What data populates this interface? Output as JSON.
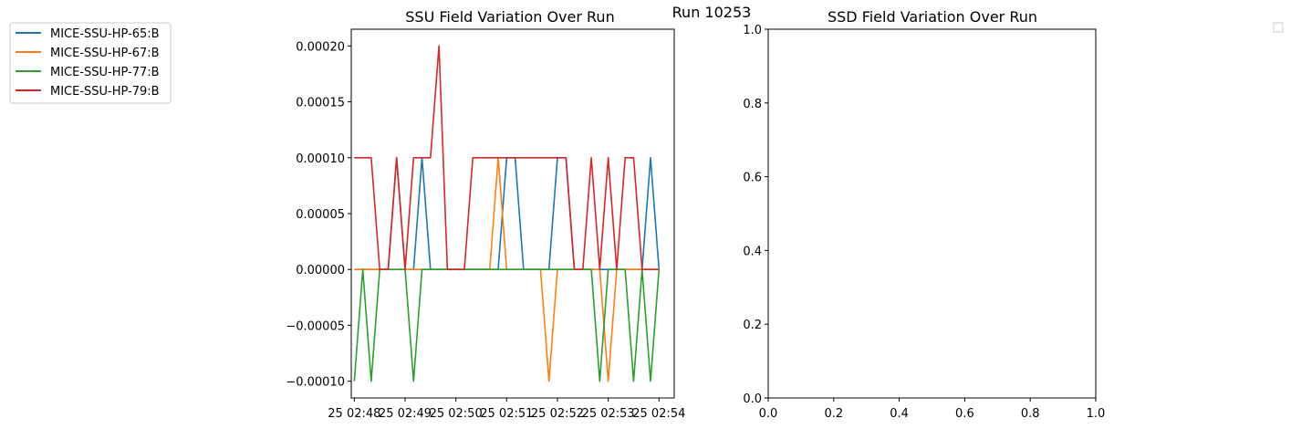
{
  "figure": {
    "suptitle": "Run 10253"
  },
  "legend": {
    "placement": "top-left",
    "entries": [
      {
        "label": "MICE-SSU-HP-65:B",
        "color": "#1f77b4"
      },
      {
        "label": "MICE-SSU-HP-67:B",
        "color": "#ff7f0e"
      },
      {
        "label": "MICE-SSU-HP-77:B",
        "color": "#2ca02c"
      },
      {
        "label": "MICE-SSU-HP-79:B",
        "color": "#d62728"
      }
    ]
  },
  "empty_legend": {
    "placement": "top-right"
  },
  "chart_data": [
    {
      "type": "line",
      "title": "SSU Field Variation Over Run",
      "xlabel": "",
      "ylabel": "",
      "grid": false,
      "x_tick_labels": [
        "25 02:48",
        "25 02:49",
        "25 02:50",
        "25 02:51",
        "25 02:52",
        "25 02:53",
        "25 02:54"
      ],
      "y_tick_labels": [
        "−0.00010",
        "−0.00005",
        "0.00000",
        "0.00005",
        "0.00010",
        "0.00015",
        "0.00020"
      ],
      "y_ticks": [
        -0.0001,
        -5e-05,
        0,
        5e-05,
        0.0001,
        0.00015,
        0.0002
      ],
      "xlim": [
        -0.06,
        6.3
      ],
      "ylim": [
        -0.000115,
        0.000215
      ],
      "x": [
        0,
        0.167,
        0.333,
        0.5,
        0.667,
        0.833,
        1.0,
        1.167,
        1.333,
        1.5,
        1.667,
        1.833,
        2.0,
        2.167,
        2.333,
        2.5,
        2.667,
        2.833,
        3.0,
        3.167,
        3.333,
        3.5,
        3.667,
        3.833,
        4.0,
        4.167,
        4.333,
        4.5,
        4.667,
        4.833,
        5.0,
        5.167,
        5.333,
        5.5,
        5.667,
        5.833,
        6.0
      ],
      "series": [
        {
          "name": "MICE-SSU-HP-65:B",
          "color": "#1f77b4",
          "values": [
            0,
            0,
            0,
            0,
            0,
            0.0001,
            0,
            0,
            0.0001,
            0,
            0,
            0,
            0,
            0,
            0,
            0,
            0,
            0,
            0.0001,
            0.0001,
            0,
            0,
            0,
            0,
            0.0001,
            0.0001,
            0,
            0,
            0,
            0,
            0,
            0,
            0,
            0,
            0,
            0.0001,
            0
          ]
        },
        {
          "name": "MICE-SSU-HP-67:B",
          "color": "#ff7f0e",
          "values": [
            0,
            0,
            0,
            0,
            0,
            0,
            0,
            0,
            0,
            0,
            0,
            0,
            0,
            0,
            0,
            0,
            0,
            0.0001,
            0,
            0,
            0,
            0,
            0,
            -0.0001,
            0,
            0,
            0,
            0,
            0,
            0,
            -0.0001,
            0,
            0,
            0,
            0,
            0,
            0
          ]
        },
        {
          "name": "MICE-SSU-HP-77:B",
          "color": "#2ca02c",
          "values": [
            -0.0001,
            0,
            -0.0001,
            0,
            0,
            0,
            0,
            -0.0001,
            0,
            0,
            0,
            0,
            0,
            0,
            0,
            0,
            0,
            0,
            0,
            0,
            0,
            0,
            0,
            0,
            0,
            0,
            0,
            0,
            0,
            -0.0001,
            0,
            0,
            0,
            -0.0001,
            0,
            -0.0001,
            0
          ]
        },
        {
          "name": "MICE-SSU-HP-79:B",
          "color": "#d62728",
          "values": [
            0.0001,
            0.0001,
            0.0001,
            0,
            0,
            0.0001,
            0,
            0.0001,
            0.0001,
            0.0001,
            0.0002,
            0,
            0,
            0,
            0.0001,
            0.0001,
            0.0001,
            0.0001,
            0.0001,
            0.0001,
            0.0001,
            0.0001,
            0.0001,
            0.0001,
            0.0001,
            0.0001,
            0,
            0,
            0.0001,
            0,
            0.0001,
            0,
            0.0001,
            0.0001,
            0,
            0,
            0
          ]
        }
      ]
    },
    {
      "type": "line",
      "title": "SSD Field Variation Over Run",
      "xlabel": "",
      "ylabel": "",
      "grid": false,
      "xlim": [
        0,
        1
      ],
      "ylim": [
        0,
        1
      ],
      "x_ticks": [
        0,
        0.2,
        0.4,
        0.6,
        0.8,
        1.0
      ],
      "y_ticks": [
        0,
        0.2,
        0.4,
        0.6,
        0.8,
        1.0
      ],
      "x_tick_labels": [
        "0.0",
        "0.2",
        "0.4",
        "0.6",
        "0.8",
        "1.0"
      ],
      "y_tick_labels": [
        "0.0",
        "0.2",
        "0.4",
        "0.6",
        "0.8",
        "1.0"
      ],
      "series": []
    }
  ]
}
